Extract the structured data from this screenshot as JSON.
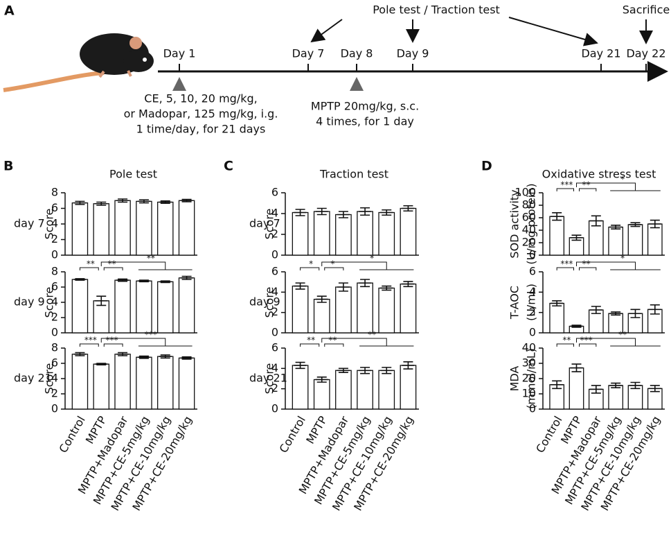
{
  "timeline": {
    "letter": "A",
    "days": [
      "Day 1",
      "Day 7",
      "Day 8",
      "Day 9",
      "Day 21",
      "Day 22"
    ],
    "tests": "Pole test / Traction test",
    "sacrifice": "Sacrifice",
    "treatment": [
      "CE, 5, 10, 20 mg/kg,",
      "or Madopar, 125 mg/kg,  i.g.",
      "1 time/day, for 21 days"
    ],
    "mptp": [
      "MPTP 20mg/kg, s.c.",
      "4 times, for 1 day"
    ]
  },
  "chart_data": [
    {
      "type": "bar",
      "panel": "B",
      "title": "Pole test",
      "row_label": "day 7",
      "ylabel": "Score",
      "color": "#ffffff",
      "categories": [
        null,
        null,
        null,
        null,
        null,
        null
      ],
      "values": [
        6.7,
        6.6,
        7.0,
        6.9,
        6.8,
        7.0
      ],
      "errors": [
        0.2,
        0.2,
        0.2,
        0.2,
        0.15,
        0.15
      ],
      "ylim": [
        0,
        8
      ],
      "yticks": [
        0,
        2,
        4,
        6,
        8
      ]
    },
    {
      "type": "bar",
      "row_label": "day 9",
      "ylabel": "Score",
      "color": "#ffffff",
      "categories": [
        null,
        null,
        null,
        null,
        null,
        null
      ],
      "values": [
        7.0,
        4.2,
        6.9,
        6.8,
        6.7,
        7.2
      ],
      "errors": [
        0.1,
        0.6,
        0.15,
        0.1,
        0.1,
        0.2
      ],
      "ylim": [
        0,
        8
      ],
      "yticks": [
        0,
        2,
        4,
        6,
        8
      ],
      "significance": [
        "**",
        "**",
        "**"
      ]
    },
    {
      "type": "bar",
      "row_label": "day 21",
      "ylabel": "Score",
      "color": "#ffffff",
      "categories": [
        "Control",
        "MPTP",
        "MPTP+Madopar",
        "MPTP+CE-5mg/kg",
        "MPTP+CE-10mg/kg",
        "MPTP+CE-20mg/kg"
      ],
      "values": [
        7.2,
        5.9,
        7.2,
        6.8,
        6.9,
        6.7
      ],
      "errors": [
        0.2,
        0.1,
        0.2,
        0.15,
        0.2,
        0.15
      ],
      "ylim": [
        0,
        8
      ],
      "yticks": [
        0,
        2,
        4,
        6,
        8
      ],
      "significance": [
        "***",
        "***",
        "***"
      ]
    },
    {
      "type": "bar",
      "panel": "C",
      "title": "Traction test",
      "row_label": "day 7",
      "ylabel": "Score",
      "color": "#ffffff",
      "categories": [
        null,
        null,
        null,
        null,
        null,
        null
      ],
      "values": [
        4.1,
        4.2,
        3.9,
        4.2,
        4.1,
        4.5
      ],
      "errors": [
        0.3,
        0.3,
        0.3,
        0.35,
        0.25,
        0.25
      ],
      "ylim": [
        0,
        6
      ],
      "yticks": [
        0,
        2,
        4,
        6
      ]
    },
    {
      "type": "bar",
      "row_label": "day 9",
      "ylabel": "Score",
      "color": "#ffffff",
      "categories": [
        null,
        null,
        null,
        null,
        null,
        null
      ],
      "values": [
        4.6,
        3.3,
        4.5,
        4.9,
        4.4,
        4.8
      ],
      "errors": [
        0.3,
        0.3,
        0.4,
        0.35,
        0.2,
        0.25
      ],
      "ylim": [
        0,
        6
      ],
      "yticks": [
        0,
        2,
        4,
        6
      ],
      "significance": [
        "*",
        "*",
        "*"
      ]
    },
    {
      "type": "bar",
      "row_label": "day 21",
      "ylabel": "Score",
      "color": "#ffffff",
      "categories": [
        "Control",
        "MPTP",
        "MPTP+Madopar",
        "MPTP+CE-5mg/kg",
        "MPTP+CE-10mg/kg",
        "MPTP+CE-20mg/kg"
      ],
      "values": [
        4.3,
        2.9,
        3.8,
        3.8,
        3.8,
        4.3
      ],
      "errors": [
        0.3,
        0.25,
        0.2,
        0.3,
        0.3,
        0.35
      ],
      "ylim": [
        0,
        6
      ],
      "yticks": [
        0,
        2,
        4,
        6
      ],
      "significance": [
        "**",
        "**",
        "**"
      ]
    },
    {
      "type": "bar",
      "panel": "D",
      "title": "Oxidative stress test",
      "ylabel": [
        "SOD activity",
        "(U/mg protein)"
      ],
      "color": "#ffffff",
      "categories": [
        null,
        null,
        null,
        null,
        null,
        null
      ],
      "values": [
        62,
        28,
        55,
        45,
        49,
        50
      ],
      "errors": [
        6,
        4,
        8,
        3,
        3,
        6
      ],
      "ylim": [
        0,
        100
      ],
      "yticks": [
        0,
        20,
        40,
        60,
        80,
        100
      ],
      "significance": [
        "***",
        "**",
        "*"
      ]
    },
    {
      "type": "bar",
      "ylabel": [
        "T-AOC",
        "(U/mL)"
      ],
      "color": "#ffffff",
      "categories": [
        null,
        null,
        null,
        null,
        null,
        null
      ],
      "values": [
        2.9,
        0.65,
        2.25,
        1.9,
        1.9,
        2.3
      ],
      "errors": [
        0.25,
        0.1,
        0.35,
        0.15,
        0.4,
        0.45
      ],
      "ylim": [
        0,
        6
      ],
      "yticks": [
        0,
        2,
        4,
        6
      ],
      "significance": [
        "***",
        "**",
        "*"
      ]
    },
    {
      "type": "bar",
      "ylabel": [
        "MDA",
        "(mmol/mL)"
      ],
      "color": "#ffffff",
      "categories": [
        "Control",
        "MPTP",
        "MPTP+Madopar",
        "MPTP+CE-5mg/kg",
        "MPTP+CE-10mg/kg",
        "MPTP+CE-20mg/kg"
      ],
      "values": [
        16,
        27,
        13,
        15.5,
        15.5,
        13.5
      ],
      "errors": [
        2.5,
        2.5,
        2.5,
        1.5,
        2,
        2
      ],
      "ylim": [
        0,
        40
      ],
      "yticks": [
        0,
        10,
        20,
        30,
        40
      ],
      "significance": [
        "**",
        "***",
        "**"
      ]
    }
  ]
}
